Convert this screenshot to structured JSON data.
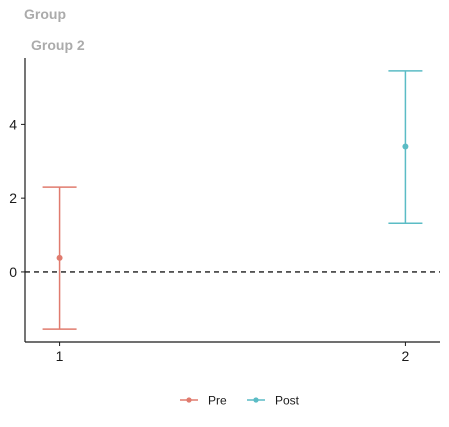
{
  "chart_data": {
    "type": "errorbar",
    "title": "Group",
    "subtitle": "Group 2",
    "xlabel": "",
    "ylabel": "",
    "x_ticks": [
      "1",
      "2"
    ],
    "y_ticks": [
      0,
      2,
      4
    ],
    "xlim": [
      0.9,
      2.1
    ],
    "ylim": [
      -1.9,
      5.8
    ],
    "reference_line": {
      "y": 0,
      "style": "dashed"
    },
    "grid": false,
    "legend_position": "bottom",
    "series": [
      {
        "name": "Pre",
        "color": "#e07b6e",
        "x": 1,
        "y": 0.38,
        "lower": -1.55,
        "upper": 2.3
      },
      {
        "name": "Post",
        "color": "#5bbcc5",
        "x": 2,
        "y": 3.4,
        "lower": 1.32,
        "upper": 5.45
      }
    ]
  }
}
